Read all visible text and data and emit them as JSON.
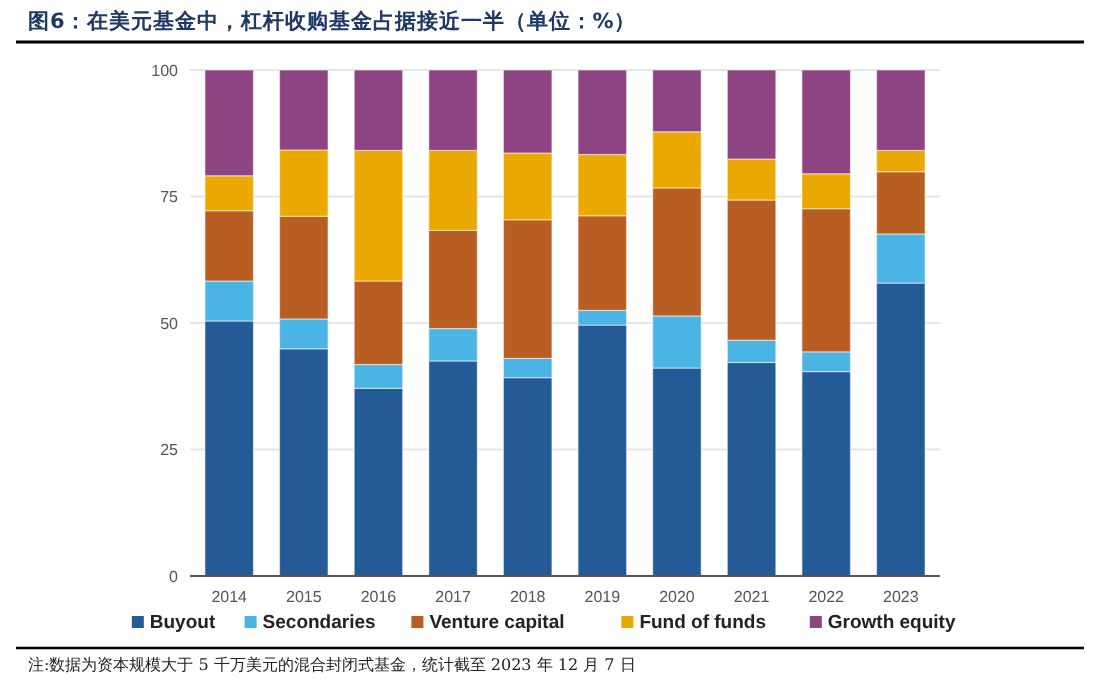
{
  "chart_data": {
    "type": "bar",
    "stacked": true,
    "title": "图6：在美元基金中，杠杆收购基金占据接近一半（单位：%）",
    "categories": [
      "2014",
      "2015",
      "2016",
      "2017",
      "2018",
      "2019",
      "2020",
      "2021",
      "2022",
      "2023"
    ],
    "series": [
      {
        "name": "Buyout",
        "color": "#245a96",
        "values": [
          50.4,
          44.9,
          37.1,
          42.5,
          39.2,
          49.6,
          41.1,
          42.2,
          40.4,
          57.9
        ]
      },
      {
        "name": "Secondaries",
        "color": "#4ab4e4",
        "values": [
          7.9,
          5.9,
          4.7,
          6.4,
          3.8,
          2.9,
          10.3,
          4.4,
          3.9,
          9.7
        ]
      },
      {
        "name": "Venture capital",
        "color": "#b95e22",
        "values": [
          13.9,
          20.3,
          16.5,
          19.4,
          27.4,
          18.7,
          25.3,
          27.7,
          28.3,
          12.3
        ]
      },
      {
        "name": "Fund of funds",
        "color": "#eba800",
        "values": [
          6.9,
          13.1,
          25.8,
          15.8,
          13.2,
          12.1,
          11.1,
          8.1,
          6.9,
          4.2
        ]
      },
      {
        "name": "Growth equity",
        "color": "#8c4483",
        "values": [
          20.9,
          15.8,
          15.9,
          15.9,
          16.4,
          16.7,
          12.2,
          17.6,
          20.5,
          15.9
        ]
      }
    ],
    "ylim": [
      0,
      100
    ],
    "yticks": [
      0,
      25,
      50,
      75,
      100
    ],
    "grid": "y",
    "legend": "bottom",
    "annotations": [
      "注:数据为资本规模大于 5 千万美元的混合封闭式基金，统计截至 2023 年 12 月 7 日"
    ]
  }
}
